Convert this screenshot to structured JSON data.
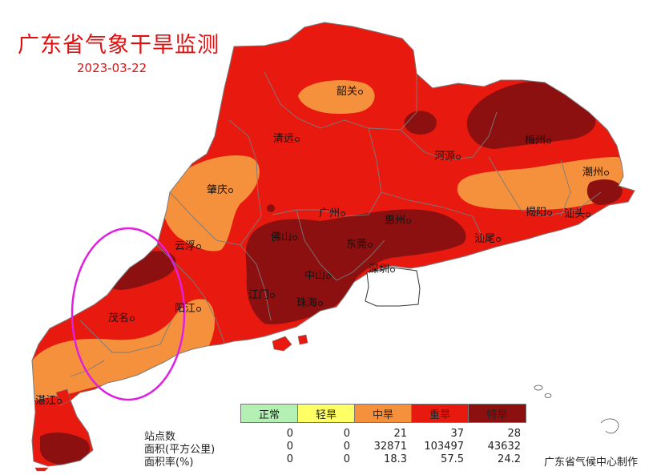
{
  "title": "广东省气象干旱监测",
  "date": "2023-03-22",
  "cities": [
    {
      "key": "shaoguan",
      "name": "韶关"
    },
    {
      "key": "qingyuan",
      "name": "清远"
    },
    {
      "key": "heyuan",
      "name": "河源"
    },
    {
      "key": "meizhou",
      "name": "梅州"
    },
    {
      "key": "chaozhou",
      "name": "潮州"
    },
    {
      "key": "zhaoqing",
      "name": "肇庆"
    },
    {
      "key": "guangzhou",
      "name": "广州"
    },
    {
      "key": "huizhou",
      "name": "惠州"
    },
    {
      "key": "jieyang",
      "name": "揭阳"
    },
    {
      "key": "shantou",
      "name": "汕头"
    },
    {
      "key": "yunfu",
      "name": "云浮"
    },
    {
      "key": "foshan",
      "name": "佛山"
    },
    {
      "key": "dongguan",
      "name": "东莞"
    },
    {
      "key": "shanwei",
      "name": "汕尾"
    },
    {
      "key": "shenzhen",
      "name": "深圳"
    },
    {
      "key": "zhongshan",
      "name": "中山"
    },
    {
      "key": "jiangmen",
      "name": "江门"
    },
    {
      "key": "zhuhai",
      "name": "珠海"
    },
    {
      "key": "maoming",
      "name": "茂名"
    },
    {
      "key": "yangjiang",
      "name": "阳江"
    },
    {
      "key": "zhanjiang",
      "name": "湛江"
    }
  ],
  "legend": [
    {
      "label": "正常",
      "color": "#b4f0b4"
    },
    {
      "label": "轻旱",
      "color": "#ffff66"
    },
    {
      "label": "中旱",
      "color": "#f5913c"
    },
    {
      "label": "重旱",
      "color": "#e81a10"
    },
    {
      "label": "特旱",
      "color": "#8c1010"
    }
  ],
  "stats": {
    "rows": [
      {
        "label": "站点数",
        "values": [
          "0",
          "0",
          "21",
          "37",
          "28"
        ]
      },
      {
        "label": "面积(平方公里)",
        "values": [
          "0",
          "0",
          "32871",
          "103497",
          "43632"
        ]
      },
      {
        "label": "面积率(%)",
        "values": [
          "0",
          "0",
          "18.3",
          "57.5",
          "24.2"
        ]
      }
    ]
  },
  "credit": "广东省气候中心制作",
  "colors": {
    "title": "#e01010",
    "highlight_circle": "#e020e0",
    "boundary": "#7a7a7a"
  }
}
